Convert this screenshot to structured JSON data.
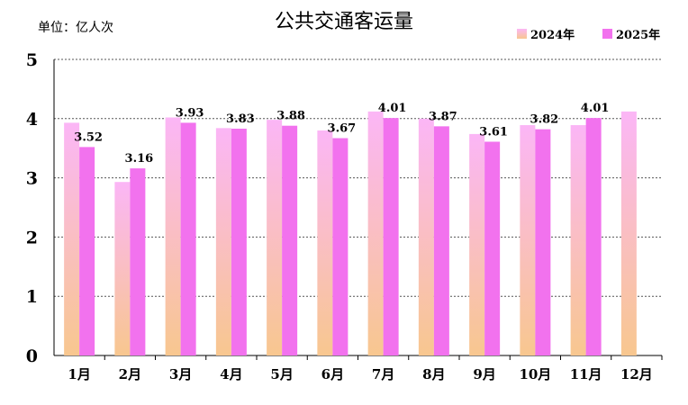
{
  "chart_data": {
    "type": "bar",
    "title": "公共交通客运量",
    "unit_label": "单位：亿人次",
    "categories": [
      "1月",
      "2月",
      "3月",
      "4月",
      "5月",
      "6月",
      "7月",
      "8月",
      "9月",
      "10月",
      "11月",
      "12月"
    ],
    "series": [
      {
        "name": "2024年",
        "color_top": "#fbb6f6",
        "color_bottom": "#f8c78f",
        "values": [
          3.93,
          2.93,
          4.02,
          3.84,
          3.98,
          3.8,
          4.12,
          4.0,
          3.74,
          3.89,
          3.89,
          4.12
        ]
      },
      {
        "name": "2025年",
        "color": "#f272ee",
        "values": [
          3.52,
          3.16,
          3.93,
          3.83,
          3.88,
          3.67,
          4.01,
          3.87,
          3.61,
          3.82,
          4.01,
          null
        ],
        "labels": [
          "3.52",
          "3.16",
          "3.93",
          "3.83",
          "3.88",
          "3.67",
          "4.01",
          "3.87",
          "3.61",
          "3.82",
          "4.01",
          ""
        ]
      }
    ],
    "ylim": [
      0,
      5
    ],
    "yticks": [
      "0",
      "1",
      "2",
      "3",
      "4",
      "5"
    ],
    "grid": true,
    "legend_position": "top-right"
  }
}
